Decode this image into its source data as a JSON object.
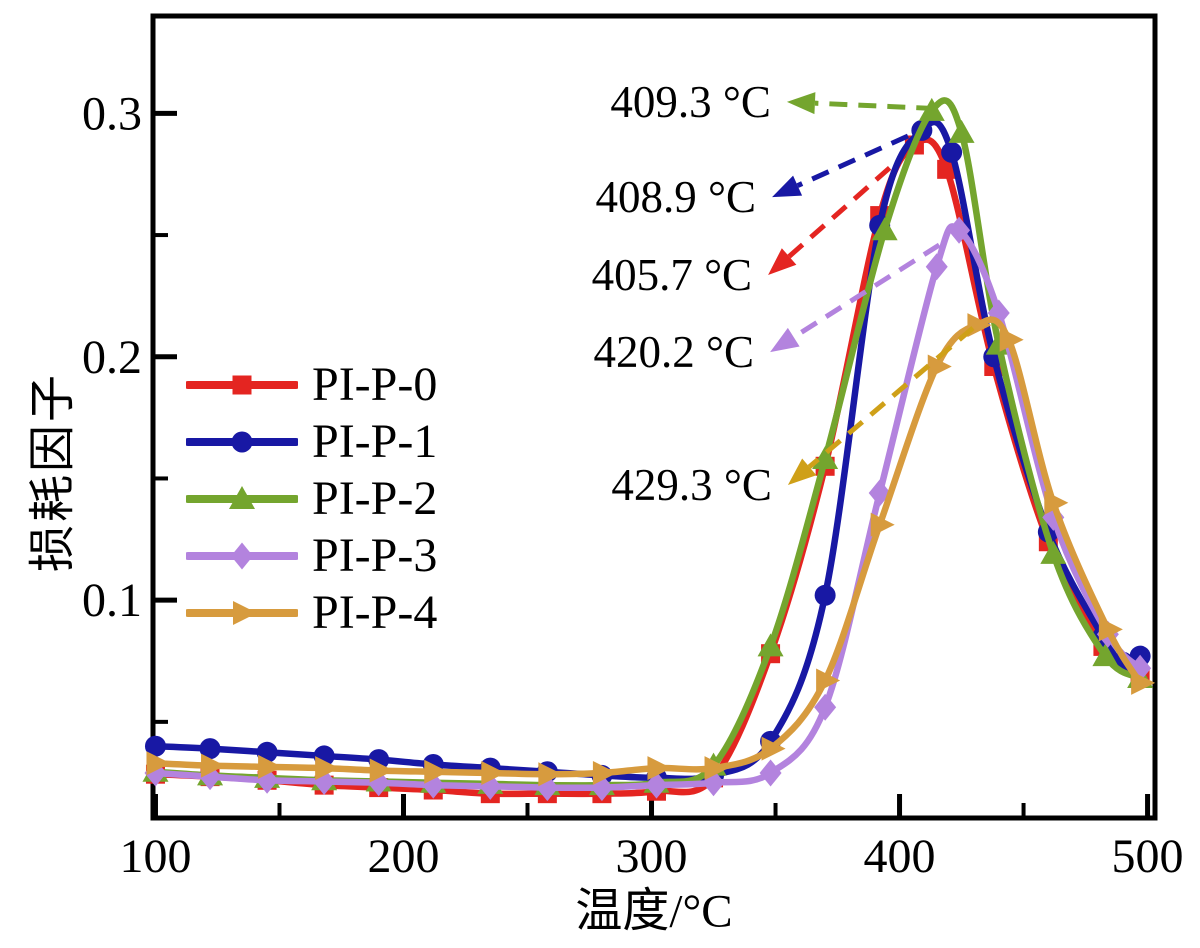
{
  "figure_background": "#ffffff",
  "chart_data": {
    "type": "line",
    "title": "",
    "xlabel": "温度/°C",
    "ylabel": "损耗因子",
    "xlim": [
      99,
      503
    ],
    "ylim": [
      0.0105,
      0.34
    ],
    "grid": false,
    "legend_position": "inside-center-left",
    "x_ticks": {
      "major": [
        100,
        200,
        300,
        400,
        500
      ],
      "labels": [
        "100",
        "200",
        "300",
        "400",
        "500"
      ],
      "minor": [
        150,
        250,
        350,
        450
      ]
    },
    "y_ticks": {
      "major": [
        0.1,
        0.2,
        0.3
      ],
      "labels": [
        "0.1",
        "0.2",
        "0.3"
      ],
      "minor": [
        0.05,
        0.15,
        0.25
      ]
    },
    "axis_color": "#000000",
    "series": [
      {
        "name": "PI-P-0",
        "color": "#e42521",
        "marker": "square",
        "points": [
          [
            100,
            0.0285
          ],
          [
            122,
            0.0275
          ],
          [
            145,
            0.026
          ],
          [
            168,
            0.024
          ],
          [
            190,
            0.023
          ],
          [
            212,
            0.022
          ],
          [
            235,
            0.0205
          ],
          [
            258,
            0.0205
          ],
          [
            280,
            0.0205
          ],
          [
            302,
            0.0215
          ],
          [
            325,
            0.027
          ],
          [
            348,
            0.078
          ],
          [
            370,
            0.155
          ],
          [
            392,
            0.258
          ],
          [
            406,
            0.287
          ],
          [
            419,
            0.277
          ],
          [
            438,
            0.196
          ],
          [
            460,
            0.124
          ],
          [
            482,
            0.081
          ],
          [
            497,
            0.068
          ]
        ]
      },
      {
        "name": "PI-P-1",
        "color": "#1818a4",
        "marker": "circle",
        "points": [
          [
            100,
            0.04
          ],
          [
            122,
            0.039
          ],
          [
            145,
            0.0375
          ],
          [
            168,
            0.036
          ],
          [
            190,
            0.0345
          ],
          [
            212,
            0.0325
          ],
          [
            235,
            0.031
          ],
          [
            258,
            0.0295
          ],
          [
            280,
            0.028
          ],
          [
            302,
            0.027
          ],
          [
            325,
            0.028
          ],
          [
            348,
            0.042
          ],
          [
            370,
            0.102
          ],
          [
            392,
            0.254
          ],
          [
            409,
            0.293
          ],
          [
            421,
            0.284
          ],
          [
            438,
            0.2
          ],
          [
            460,
            0.128
          ],
          [
            482,
            0.085
          ],
          [
            490,
            0.0745
          ],
          [
            497,
            0.077
          ]
        ]
      },
      {
        "name": "PI-P-2",
        "color": "#74a52e",
        "marker": "triangle-up",
        "points": [
          [
            100,
            0.0295
          ],
          [
            122,
            0.028
          ],
          [
            145,
            0.027
          ],
          [
            168,
            0.026
          ],
          [
            190,
            0.0255
          ],
          [
            212,
            0.025
          ],
          [
            235,
            0.0245
          ],
          [
            258,
            0.024
          ],
          [
            280,
            0.024
          ],
          [
            302,
            0.025
          ],
          [
            325,
            0.032
          ],
          [
            348,
            0.081
          ],
          [
            370,
            0.158
          ],
          [
            394,
            0.252
          ],
          [
            413,
            0.301
          ],
          [
            425,
            0.292
          ],
          [
            440,
            0.205
          ],
          [
            462,
            0.119
          ],
          [
            483,
            0.077
          ],
          [
            497,
            0.068
          ]
        ]
      },
      {
        "name": "PI-P-3",
        "color": "#b383de",
        "marker": "diamond",
        "points": [
          [
            100,
            0.029
          ],
          [
            122,
            0.0275
          ],
          [
            145,
            0.026
          ],
          [
            168,
            0.0255
          ],
          [
            190,
            0.025
          ],
          [
            212,
            0.024
          ],
          [
            235,
            0.0235
          ],
          [
            258,
            0.023
          ],
          [
            280,
            0.023
          ],
          [
            302,
            0.024
          ],
          [
            325,
            0.025
          ],
          [
            348,
            0.029
          ],
          [
            370,
            0.056
          ],
          [
            392,
            0.144
          ],
          [
            415,
            0.237
          ],
          [
            424,
            0.252
          ],
          [
            440,
            0.218
          ],
          [
            462,
            0.134
          ],
          [
            484,
            0.086
          ],
          [
            497,
            0.072
          ]
        ]
      },
      {
        "name": "PI-P-4",
        "color": "#d79b3e",
        "marker": "triangle-right",
        "points": [
          [
            100,
            0.033
          ],
          [
            122,
            0.032
          ],
          [
            145,
            0.0315
          ],
          [
            168,
            0.031
          ],
          [
            190,
            0.03
          ],
          [
            212,
            0.0295
          ],
          [
            235,
            0.029
          ],
          [
            258,
            0.0285
          ],
          [
            280,
            0.029
          ],
          [
            302,
            0.031
          ],
          [
            325,
            0.031
          ],
          [
            348,
            0.039
          ],
          [
            370,
            0.067
          ],
          [
            392,
            0.131
          ],
          [
            415,
            0.196
          ],
          [
            431,
            0.213
          ],
          [
            444,
            0.207
          ],
          [
            462,
            0.14
          ],
          [
            484,
            0.088
          ],
          [
            497,
            0.066
          ]
        ]
      }
    ],
    "annotations": [
      {
        "text": "409.3 °C",
        "series": "PI-P-2",
        "color": "#74a52e",
        "tail_xy": [
          414,
          0.302
        ],
        "head_xy": [
          354.6,
          0.3047
        ]
      },
      {
        "text": "408.9 °C",
        "series": "PI-P-1",
        "color": "#1818a4",
        "tail_xy": [
          403.4,
          0.2907
        ],
        "head_xy": [
          348.6,
          0.2656
        ]
      },
      {
        "text": "405.7 °C",
        "series": "PI-P-0",
        "color": "#e42521",
        "tail_xy": [
          396,
          0.2776
        ],
        "head_xy": [
          347,
          0.2336
        ]
      },
      {
        "text": "420.2 °C",
        "series": "PI-P-3",
        "color": "#b383de",
        "tail_xy": [
          416,
          0.2459
        ],
        "head_xy": [
          347.8,
          0.2019
        ]
      },
      {
        "text": "429.3 °C",
        "series": "PI-P-4",
        "color": "#cfa018",
        "tail_xy": [
          429.6,
          0.2118
        ],
        "head_xy": [
          355,
          0.1473
        ]
      }
    ]
  }
}
